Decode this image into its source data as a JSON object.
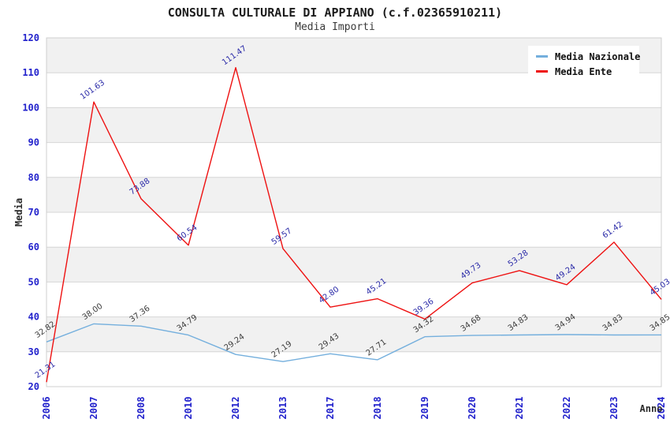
{
  "header": {
    "title": "CONSULTA CULTURALE DI APPIANO (c.f.02365910211)",
    "subtitle": "Media Importi"
  },
  "chart_data": {
    "type": "line",
    "title": "CONSULTA CULTURALE DI APPIANO (c.f.02365910211)",
    "subtitle": "Media Importi",
    "xlabel": "Anno",
    "ylabel": "Media",
    "ylim": [
      20,
      120
    ],
    "ytick_step": 10,
    "grid": "horizontal-bands",
    "legend_position": "top-right",
    "categories": [
      "2006",
      "2007",
      "2008",
      "2010",
      "2012",
      "2013",
      "2017",
      "2018",
      "2019",
      "2020",
      "2021",
      "2022",
      "2023",
      "2024"
    ],
    "series": [
      {
        "name": "Media Nazionale",
        "color": "#74afdd",
        "label_color": "#3c3c3c",
        "values": [
          32.82,
          38.0,
          37.36,
          34.79,
          29.24,
          27.19,
          29.43,
          27.71,
          34.32,
          34.68,
          34.83,
          34.94,
          34.83,
          34.85
        ]
      },
      {
        "name": "Media Ente",
        "color": "#ee1111",
        "label_color": "#2a2aa8",
        "values": [
          21.31,
          101.63,
          73.88,
          60.54,
          111.47,
          59.57,
          42.8,
          45.21,
          39.36,
          49.73,
          53.28,
          49.24,
          61.42,
          45.03
        ]
      }
    ],
    "colors": {
      "band_even": "#ffffff",
      "band_odd": "#f1f1f1",
      "gridline": "#d6d6d6",
      "plot_border": "#cfcfcf",
      "tick_label": "#2222cc",
      "axis_title": "#2a2a2a"
    }
  }
}
